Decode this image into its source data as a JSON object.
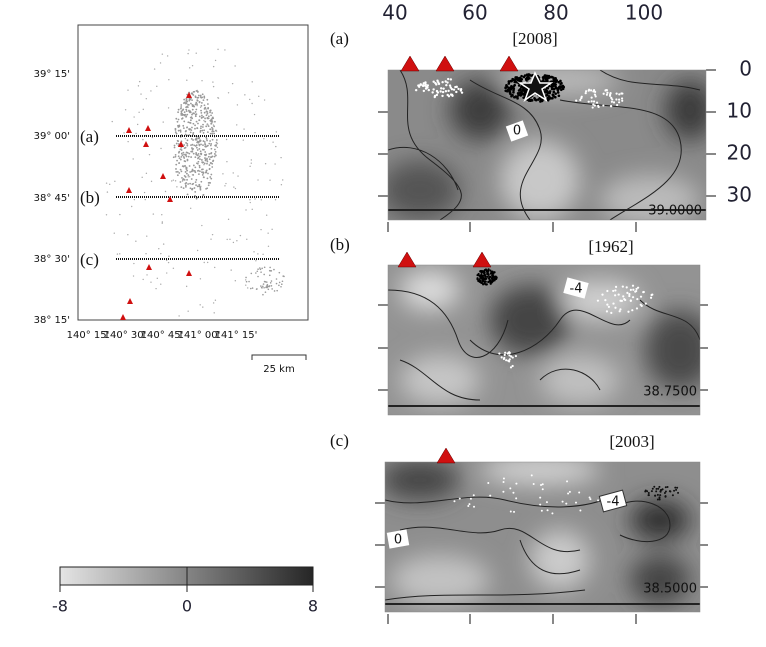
{
  "map": {
    "lat_labels": [
      "39° 15'",
      "39° 00'",
      "38° 45'",
      "38° 30'",
      "38° 15'"
    ],
    "lon_labels": [
      "140° 15'",
      "140° 30'",
      "140° 45'",
      "141° 00'",
      "141° 15'"
    ],
    "profile_labels": [
      "(a)",
      "(b)",
      "(c)"
    ],
    "scale_label": "25 km"
  },
  "section_axes": {
    "distance_labels": [
      "40",
      "60",
      "80",
      "100"
    ],
    "depth_labels": [
      "0",
      "10",
      "20",
      "30"
    ]
  },
  "panels": [
    {
      "label": "(a)",
      "year": "[2008]",
      "latitude": "39.0000",
      "contour_labels": [
        "0"
      ]
    },
    {
      "label": "(b)",
      "year": "[1962]",
      "latitude": "38.7500",
      "contour_labels": [
        "-4"
      ]
    },
    {
      "label": "(c)",
      "year": "[2003]",
      "latitude": "38.5000",
      "contour_labels": [
        "-4",
        "0"
      ]
    }
  ],
  "colorbar": {
    "tick_labels": [
      "-8",
      "0",
      "8"
    ]
  }
}
